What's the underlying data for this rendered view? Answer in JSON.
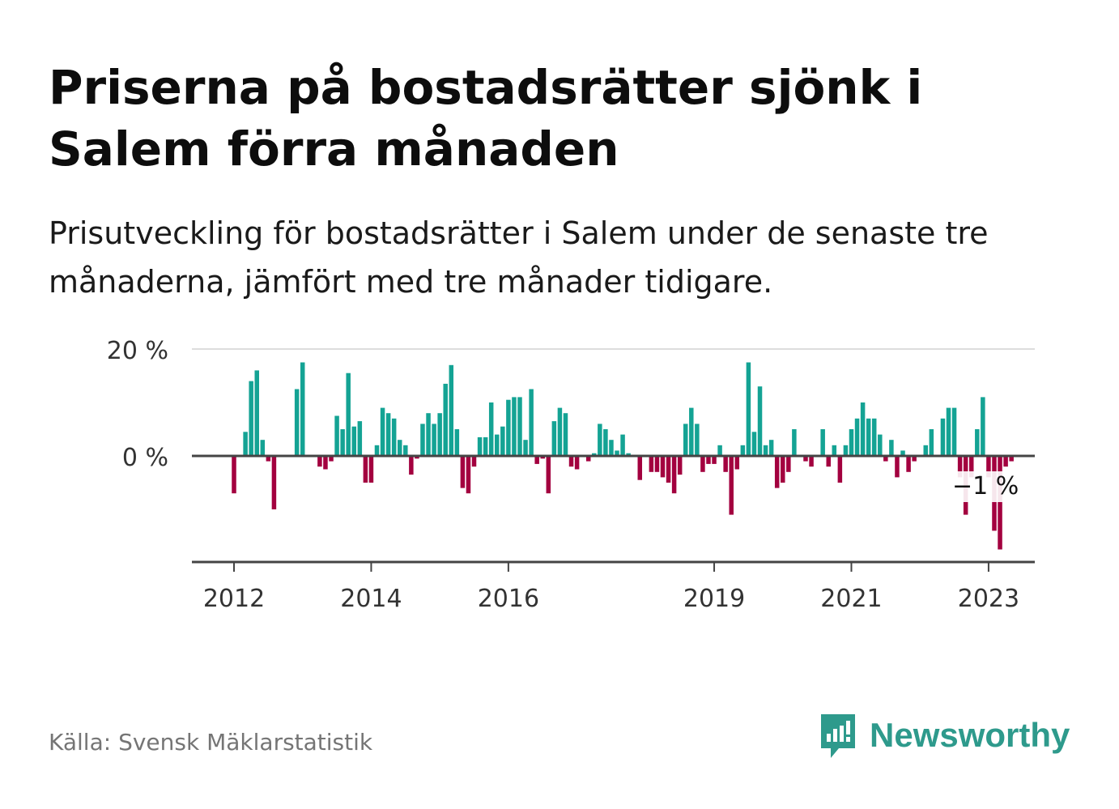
{
  "title": "Priserna på bostadsrätter sjönk i Salem förra månaden",
  "subtitle": "Prisutveckling för bostadsrätter i Salem under de senaste tre månaderna, jämfört med tre månader tidigare.",
  "source": "Källa: Svensk Mäklarstatistik",
  "brand": {
    "name": "Newsworthy",
    "icon": "newsworthy-logo-icon",
    "color": "#2e9a8c"
  },
  "colors": {
    "positive": "#14a394",
    "negative": "#a3003f",
    "zero_line": "#444444",
    "grid": "#dddddd"
  },
  "chart_data": {
    "type": "bar",
    "y_ticks": [
      {
        "value": 20,
        "label": "20 %"
      },
      {
        "value": 0,
        "label": "0 %"
      }
    ],
    "ylim": [
      -20,
      20
    ],
    "x_ticks": [
      {
        "index": 0,
        "label": "2012"
      },
      {
        "index": 24,
        "label": "2014"
      },
      {
        "index": 48,
        "label": "2016"
      },
      {
        "index": 84,
        "label": "2019"
      },
      {
        "index": 108,
        "label": "2021"
      },
      {
        "index": 132,
        "label": "2023"
      }
    ],
    "annotation": {
      "label": "−1 %",
      "value": -1
    },
    "values": [
      -7,
      0,
      4.5,
      14,
      16,
      3,
      -1,
      -10,
      0,
      0,
      0,
      12.5,
      17.5,
      0,
      0,
      -2,
      -2.5,
      -1,
      7.5,
      5,
      15.5,
      5.5,
      6.5,
      -5,
      -5,
      2,
      9,
      8,
      7,
      3,
      2,
      -3.5,
      -0.5,
      6,
      8,
      6,
      8,
      13.5,
      17,
      5,
      -6,
      -7,
      -2,
      3.5,
      3.5,
      10,
      4,
      5.5,
      10.5,
      11,
      11,
      3,
      12.5,
      -1.5,
      -0.5,
      -7,
      6.5,
      9,
      8,
      -2,
      -2.5,
      0,
      -1,
      0.5,
      6,
      5,
      3,
      1,
      4,
      0.5,
      0,
      -4.5,
      0,
      -3,
      -3,
      -4,
      -5,
      -7,
      -3.5,
      6,
      9,
      6,
      -3,
      -1.5,
      -1.5,
      2,
      -3,
      -11,
      -2.5,
      2,
      17.5,
      4.5,
      13,
      2,
      3,
      -6,
      -5,
      -3,
      5,
      0,
      -1,
      -2,
      0,
      5,
      -2,
      2,
      -5,
      2,
      5,
      7,
      10,
      7,
      7,
      4,
      -1,
      3,
      -4,
      1,
      -3,
      -1,
      0,
      2,
      5,
      0,
      7,
      9,
      9,
      -4,
      -11,
      -4,
      5,
      11,
      -4,
      -14,
      -17.5,
      -2,
      -1
    ]
  }
}
